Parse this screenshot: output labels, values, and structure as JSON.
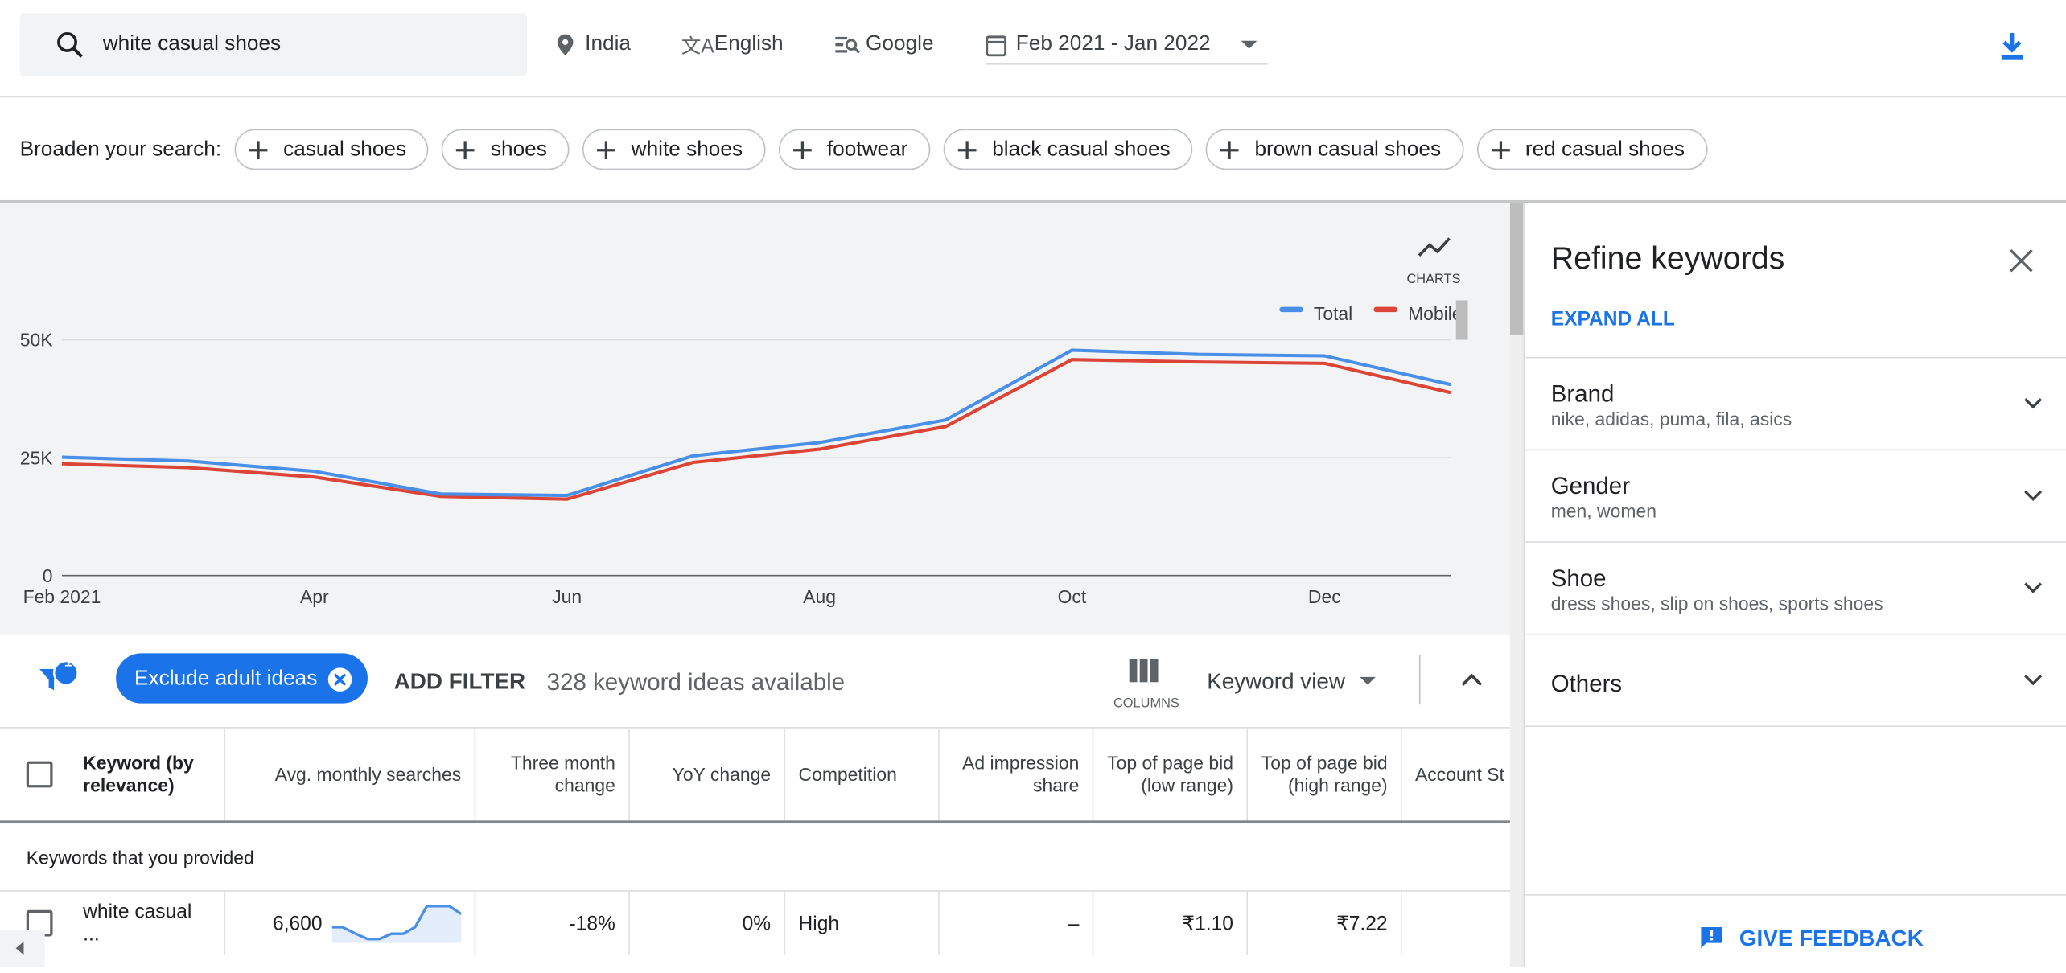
{
  "search": {
    "query": "white casual shoes",
    "location": "India",
    "language": "English",
    "network": "Google",
    "date_range": "Feb 2021 - Jan 2022"
  },
  "broaden": {
    "label": "Broaden your search:",
    "chips": [
      "casual shoes",
      "shoes",
      "white shoes",
      "footwear",
      "black casual shoes",
      "brown casual shoes",
      "red casual shoes"
    ]
  },
  "chart": {
    "type": "line",
    "icon_label": "CHARTS",
    "x": [
      "Feb 2021",
      null,
      "Apr",
      null,
      "Jun",
      null,
      "Aug",
      null,
      "Oct",
      null,
      "Dec",
      null
    ],
    "series": [
      {
        "name": "Total",
        "color": "#4a8fe7",
        "values": [
          25100,
          24300,
          22100,
          17300,
          17000,
          25400,
          28200,
          33000,
          47800,
          46900,
          46600,
          40500
        ]
      },
      {
        "name": "Mobile",
        "color": "#db4437",
        "values": [
          23700,
          22900,
          20900,
          16800,
          16200,
          24000,
          26800,
          31600,
          45800,
          45300,
          45000,
          38800
        ]
      }
    ],
    "ylim": [
      0,
      50000
    ],
    "yticks": [
      0,
      {
        "value": 25000,
        "label": "25K"
      },
      {
        "value": 50000,
        "label": "50K"
      }
    ],
    "grid": true
  },
  "filters": {
    "badge": "1",
    "chip": "Exclude adult ideas",
    "add": "ADD FILTER",
    "count": "328 keyword ideas available",
    "columns": "COLUMNS",
    "view": "Keyword view"
  },
  "table": {
    "headers": [
      "Keyword (by relevance)",
      "Avg. monthly searches",
      "Three month change",
      "YoY change",
      "Competition",
      "Ad impression share",
      "Top of page bid (low range)",
      "Top of page bid (high range)",
      "Account St"
    ],
    "section": "Keywords that you provided",
    "rows": [
      [
        "white casual ...",
        "6,600",
        "-18%",
        "0%",
        "High",
        "–",
        "₹1.10",
        "₹7.22"
      ]
    ]
  },
  "refine": {
    "title": "Refine keywords",
    "expand": "EXPAND ALL",
    "groups": [
      {
        "name": "Brand",
        "detail": "nike, adidas, puma, fila, asics"
      },
      {
        "name": "Gender",
        "detail": "men, women"
      },
      {
        "name": "Shoe",
        "detail": "dress shoes, slip on shoes, sports shoes"
      },
      {
        "name": "Others"
      }
    ]
  },
  "feedback": "GIVE FEEDBACK"
}
